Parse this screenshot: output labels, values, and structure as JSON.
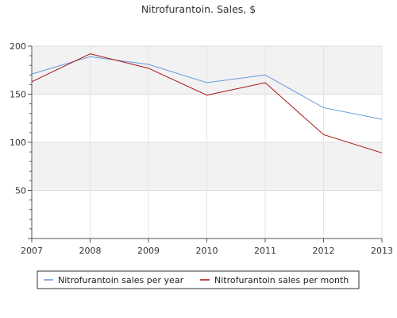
{
  "chart_data": {
    "type": "line",
    "title": "Nitrofurantoin. Sales, $",
    "xlabel": "",
    "ylabel": "",
    "x": [
      "2007",
      "2008",
      "2009",
      "2010",
      "2011",
      "2012",
      "2013"
    ],
    "ylim": [
      0,
      200
    ],
    "yticks": [
      "50",
      "100",
      "150",
      "200"
    ],
    "grid": true,
    "legend_position": "bottom",
    "series": [
      {
        "name": "Nitrofurantoin sales per year",
        "color": "#6699dd",
        "values": [
          171,
          189,
          181,
          162,
          170,
          136,
          124
        ]
      },
      {
        "name": "Nitrofurantoin sales per month",
        "color": "#aa1111",
        "values": [
          163,
          192,
          177,
          149,
          162,
          108,
          89
        ]
      }
    ]
  }
}
